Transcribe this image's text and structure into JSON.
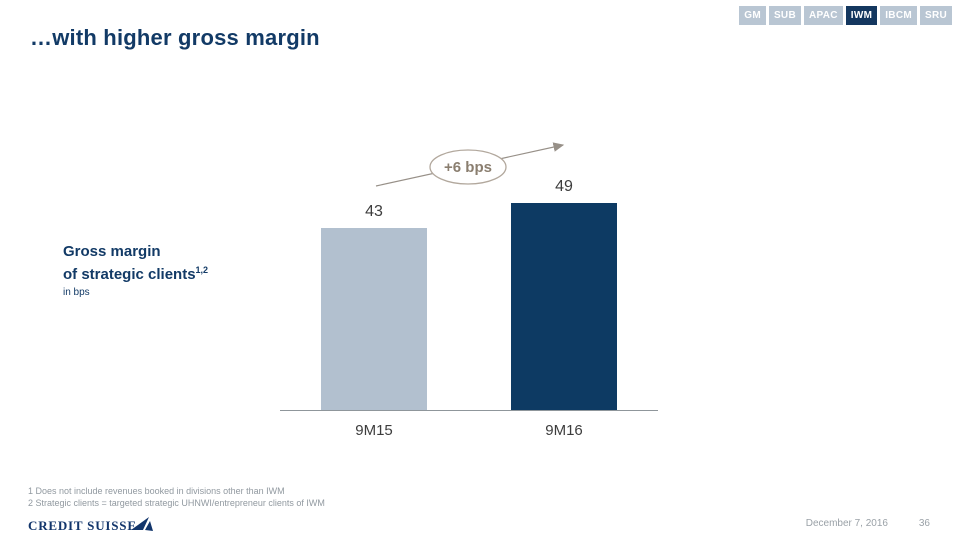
{
  "slide": {
    "title": "…with higher gross margin"
  },
  "tabs": {
    "items": [
      {
        "label": "GM",
        "selected": false
      },
      {
        "label": "SUB",
        "selected": false
      },
      {
        "label": "APAC",
        "selected": false
      },
      {
        "label": "IWM",
        "selected": true
      },
      {
        "label": "IBCM",
        "selected": false
      },
      {
        "label": "SRU",
        "selected": false
      }
    ]
  },
  "chart_label": {
    "line1": "Gross margin",
    "line2": "of strategic clients",
    "superscript": "1,2",
    "unit": "in bps"
  },
  "chart_data": {
    "type": "bar",
    "categories": [
      "9M15",
      "9M16"
    ],
    "values": [
      43,
      49
    ],
    "annotation": "+6 bps",
    "title": "Gross margin of strategic clients",
    "xlabel": "",
    "ylabel": "in bps",
    "ylim": [
      0,
      66
    ],
    "bar_colors": [
      "#b2c0cf",
      "#0d3a63"
    ],
    "grid": false,
    "legend": "none"
  },
  "footnotes": [
    "1 Does not include revenues booked in divisions other than IWM",
    "2 Strategic clients = targeted strategic UHNWI/entrepreneur clients of IWM"
  ],
  "footer": {
    "logo_text": "CREDIT SUISSE",
    "date": "December 7, 2016",
    "page": "36"
  },
  "colors": {
    "navy": "#123a66",
    "light_bar": "#b2c0cf",
    "dark_bar": "#0d3a63",
    "tab_inactive": "#b9c6d3",
    "tab_active": "#14375f",
    "annotation_text": "#8a7e6f",
    "annotation_stroke": "#b2a89d",
    "arrow_gray": "#979088",
    "footnote_gray": "#9199a0",
    "value_label_gray": "#3d3d3d"
  }
}
